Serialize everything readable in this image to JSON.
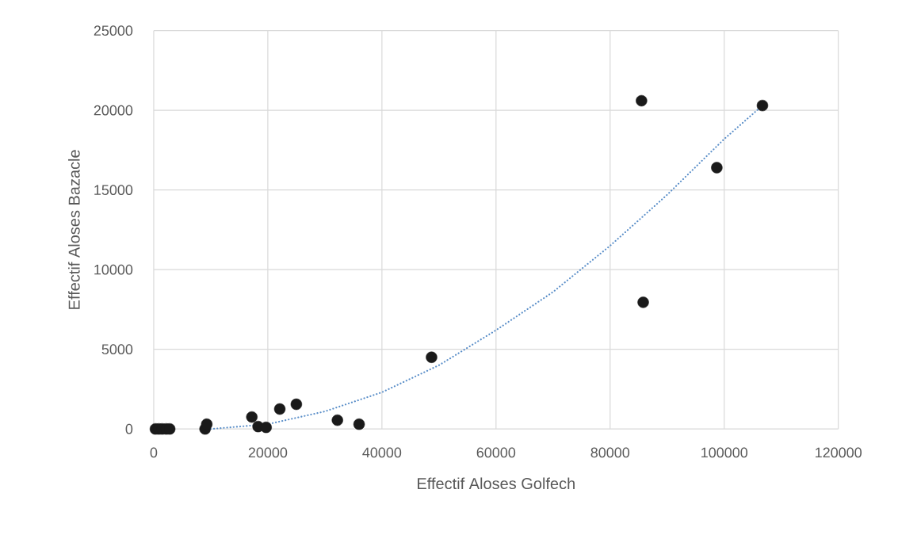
{
  "chart_data": {
    "type": "scatter",
    "xlabel": "Effectif Aloses Golfech",
    "ylabel": "Effectif Aloses Bazacle",
    "xlim": [
      0,
      120000
    ],
    "ylim": [
      0,
      25000
    ],
    "xticks": [
      0,
      20000,
      40000,
      60000,
      80000,
      100000,
      120000
    ],
    "yticks": [
      0,
      5000,
      10000,
      15000,
      20000,
      25000
    ],
    "grid": true,
    "marker": "circle",
    "series": [
      {
        "color": "#1a1a1a",
        "x": [
          300,
          900,
          1500,
          2200,
          2800,
          9000,
          9300,
          17200,
          18300,
          19700,
          22100,
          25000,
          32200,
          36000,
          48700,
          85500,
          85800,
          98700,
          106700
        ],
        "values": [
          0,
          0,
          0,
          0,
          0,
          0,
          300,
          750,
          150,
          100,
          1250,
          1550,
          550,
          300,
          4500,
          20600,
          7950,
          16400,
          20300
        ]
      },
      {
        "type": "line",
        "color": "#5b8fc9",
        "line_style": "dotted",
        "marker": "none",
        "x": [
          10000,
          20000,
          30000,
          40000,
          50000,
          60000,
          70000,
          80000,
          90000,
          100000,
          106700
        ],
        "values": [
          0,
          300,
          1100,
          2300,
          4000,
          6200,
          8600,
          11500,
          14700,
          18200,
          20300
        ]
      }
    ]
  }
}
